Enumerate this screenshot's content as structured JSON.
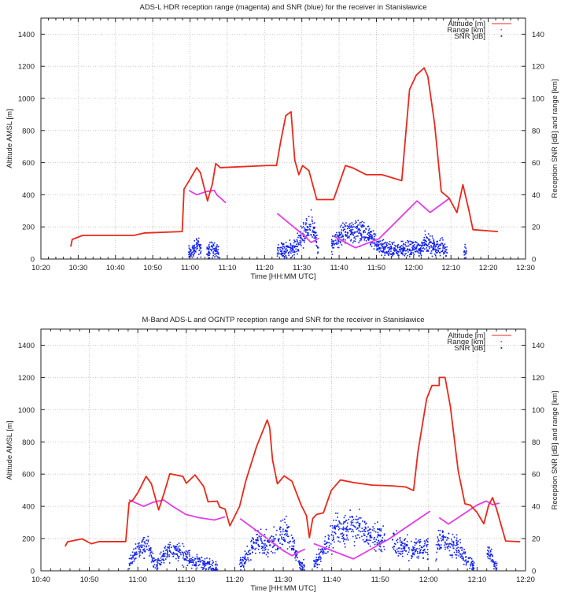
{
  "chart_data": [
    {
      "type": "line+scatter",
      "title": "ADS-L HDR reception range (magenta) and SNR (blue) for the receiver in Stanisławice",
      "xlabel": "Time [HH:MM UTC]",
      "ylabel": "Altitude AMSL [m]",
      "y2label": "Reception SNR [dB] and range [km]",
      "x_unit": "minutes since 00:00 UTC",
      "xlim": [
        620,
        750
      ],
      "x_ticks": [
        "10:20",
        "10:30",
        "10:40",
        "10:50",
        "11:00",
        "11:10",
        "11:20",
        "11:30",
        "11:40",
        "11:50",
        "12:00",
        "12:10",
        "12:20",
        "12:30"
      ],
      "ylim": [
        0,
        1500
      ],
      "y_ticks": [
        "0",
        "200",
        "400",
        "600",
        "800",
        "1000",
        "1200",
        "1400"
      ],
      "y2lim": [
        0,
        150
      ],
      "y2_ticks": [
        "0",
        "20",
        "40",
        "60",
        "80",
        "100",
        "120",
        "140"
      ],
      "grid": true,
      "legend_position": "top-right",
      "legend": [
        "Altitude [m]",
        "Range [km]",
        "SNR [dB]"
      ],
      "colors": {
        "altitude": "#e8291c",
        "range": "#e23ce6",
        "snr": "#1020ee"
      },
      "series": {
        "altitude": [
          [
            [
              628,
              77
            ],
            [
              628.4,
              122
            ],
            [
              631.2,
              147
            ],
            [
              644.9,
              147
            ],
            [
              647.7,
              162
            ],
            [
              657.9,
              171
            ],
            [
              658.4,
              436
            ],
            [
              659.7,
              485
            ],
            [
              661.8,
              569
            ],
            [
              662.8,
              537
            ],
            [
              664.7,
              362
            ],
            [
              666,
              468
            ],
            [
              666.9,
              595
            ],
            [
              668.1,
              569
            ],
            [
              680.8,
              582
            ],
            [
              683.2,
              582
            ],
            [
              684.3,
              729
            ],
            [
              685.7,
              893
            ],
            [
              687.1,
              917
            ],
            [
              688.1,
              615
            ],
            [
              689.2,
              525
            ],
            [
              690.2,
              582
            ],
            [
              691.9,
              550
            ],
            [
              694,
              370
            ],
            [
              698.5,
              370
            ],
            [
              701.7,
              582
            ],
            [
              703.8,
              566
            ],
            [
              707.3,
              525
            ],
            [
              711.5,
              525
            ],
            [
              716.8,
              488
            ],
            [
              718.9,
              1056
            ],
            [
              720.7,
              1145
            ],
            [
              722.8,
              1190
            ],
            [
              723.8,
              1137
            ],
            [
              725.6,
              844
            ],
            [
              727.4,
              420
            ],
            [
              729.5,
              379
            ],
            [
              731.6,
              289
            ],
            [
              733.2,
              463
            ],
            [
              734.8,
              305
            ],
            [
              735.9,
              183
            ],
            [
              742.6,
              171
            ]
          ]
        ],
        "range": [
          [
            [
              659.7,
              42.7
            ],
            [
              661.8,
              40
            ],
            [
              664.3,
              42
            ],
            [
              666.5,
              42.7
            ],
            [
              667.2,
              40
            ],
            [
              669.6,
              35
            ]
          ],
          [
            [
              683.4,
              28.4
            ],
            [
              690.4,
              15
            ],
            [
              692.5,
              10.3
            ],
            [
              694.6,
              13
            ]
          ],
          [
            [
              698.8,
              13.9
            ],
            [
              704.4,
              7
            ],
            [
              710.7,
              12.6
            ],
            [
              720.9,
              36.2
            ],
            [
              724.4,
              29
            ],
            [
              729.7,
              38
            ]
          ]
        ],
        "snr": [
          [
            [
              659.5,
              4
            ],
            [
              660.5,
              4
            ],
            [
              661.5,
              7
            ],
            [
              662.2,
              9
            ],
            [
              663,
              5
            ]
          ],
          [
            [
              664.5,
              5
            ],
            [
              666,
              6
            ],
            [
              667.7,
              5
            ]
          ],
          [
            [
              683.4,
              5
            ],
            [
              686,
              6
            ],
            [
              688.5,
              7
            ],
            [
              689.7,
              14
            ],
            [
              691,
              17
            ],
            [
              692.5,
              21
            ],
            [
              693.5,
              15
            ],
            [
              694.5,
              7
            ]
          ],
          [
            [
              698,
              8
            ],
            [
              700,
              14
            ],
            [
              702,
              17
            ],
            [
              704,
              18
            ],
            [
              706,
              16
            ],
            [
              708,
              14
            ],
            [
              709.5,
              10
            ],
            [
              710.5,
              8
            ],
            [
              712,
              6
            ],
            [
              716,
              6
            ],
            [
              720,
              7
            ],
            [
              722,
              6
            ],
            [
              723,
              12
            ],
            [
              725,
              8
            ],
            [
              728,
              7
            ],
            [
              729,
              4
            ]
          ],
          [
            [
              733.5,
              5
            ],
            [
              734.2,
              5
            ]
          ]
        ]
      }
    },
    {
      "type": "line+scatter",
      "title": "M-Band ADS-L and OGNTP reception range and SNR for the receiver in Stanisławice",
      "xlabel": "Time [HH:MM UTC]",
      "ylabel": "Altitude AMSL [m]",
      "y2label": "Reception SNR [dB] and range [km]",
      "x_unit": "minutes since 00:00 UTC",
      "xlim": [
        640,
        740
      ],
      "x_ticks": [
        "10:40",
        "10:50",
        "11:00",
        "11:10",
        "11:20",
        "11:30",
        "11:40",
        "11:50",
        "12:00",
        "12:10",
        "12:20"
      ],
      "ylim": [
        0,
        1500
      ],
      "y_ticks": [
        "0",
        "200",
        "400",
        "600",
        "800",
        "1000",
        "1200",
        "1400"
      ],
      "y2lim": [
        0,
        150
      ],
      "y2_ticks": [
        "0",
        "20",
        "40",
        "60",
        "80",
        "100",
        "120",
        "140"
      ],
      "grid": true,
      "legend_position": "top-right",
      "legend": [
        "Altitude [m]",
        "Range [km]",
        "SNR [dB]"
      ],
      "colors": {
        "altitude": "#e8291c",
        "range": "#e23ce6",
        "snr": "#1020ee"
      },
      "series": {
        "altitude": [
          [
            [
              645,
              152
            ],
            [
              645.5,
              180
            ],
            [
              648.5,
              198
            ],
            [
              650.4,
              168
            ],
            [
              652,
              181
            ],
            [
              657.5,
              181
            ],
            [
              658.2,
              424
            ],
            [
              659,
              440
            ],
            [
              660.1,
              490
            ],
            [
              661.7,
              586
            ],
            [
              662.8,
              540
            ],
            [
              664.3,
              378
            ],
            [
              665.5,
              490
            ],
            [
              666.6,
              602
            ],
            [
              669.3,
              586
            ],
            [
              670,
              543
            ],
            [
              671.8,
              595
            ],
            [
              673.6,
              523
            ],
            [
              674.5,
              428
            ],
            [
              676.4,
              432
            ],
            [
              676.9,
              395
            ],
            [
              678,
              383
            ],
            [
              679,
              279
            ],
            [
              681,
              400
            ],
            [
              682.3,
              560
            ],
            [
              684.5,
              771
            ],
            [
              686.7,
              936
            ],
            [
              687.2,
              890
            ],
            [
              687.8,
              688
            ],
            [
              688.8,
              540
            ],
            [
              690.2,
              589
            ],
            [
              691.8,
              556
            ],
            [
              693.7,
              408
            ],
            [
              694.8,
              342
            ],
            [
              695.4,
              206
            ],
            [
              696.1,
              325
            ],
            [
              696.9,
              350
            ],
            [
              698.3,
              360
            ],
            [
              699.9,
              498
            ],
            [
              701.8,
              564
            ],
            [
              704.5,
              548
            ],
            [
              708.3,
              532
            ],
            [
              712.6,
              527
            ],
            [
              715.3,
              520
            ],
            [
              716.9,
              498
            ],
            [
              717.8,
              738
            ],
            [
              719.6,
              1068
            ],
            [
              720.7,
              1150
            ],
            [
              722.2,
              1150
            ],
            [
              722.2,
              1200
            ],
            [
              723.4,
              1200
            ],
            [
              724.5,
              1018
            ],
            [
              726.1,
              622
            ],
            [
              727.5,
              416
            ],
            [
              728.6,
              408
            ],
            [
              729.9,
              366
            ],
            [
              731.4,
              292
            ],
            [
              732.4,
              408
            ],
            [
              733.2,
              454
            ],
            [
              734,
              386
            ],
            [
              735.9,
              185
            ],
            [
              738.9,
              180
            ]
          ]
        ],
        "range": [
          [
            [
              658.2,
              44
            ],
            [
              661.2,
              40
            ],
            [
              663.1,
              42.5
            ],
            [
              665.3,
              44
            ],
            [
              667.2,
              40
            ],
            [
              669.9,
              35
            ],
            [
              672.6,
              33
            ],
            [
              675.8,
              31.5
            ],
            [
              678,
              33.5
            ]
          ],
          [
            [
              681.1,
              32.4
            ],
            [
              684,
              26
            ],
            [
              689.9,
              12.8
            ],
            [
              691.8,
              9.4
            ],
            [
              694.5,
              13.5
            ]
          ],
          [
            [
              696.3,
              16.9
            ],
            [
              704.5,
              7.4
            ],
            [
              711.6,
              19.3
            ],
            [
              720.3,
              37
            ]
          ],
          [
            [
              722.2,
              33
            ],
            [
              724.1,
              29
            ],
            [
              730,
              40.8
            ],
            [
              731.9,
              43.3
            ],
            [
              733.2,
              41
            ],
            [
              734.6,
              42
            ]
          ]
        ],
        "snr": [
          [
            [
              658.2,
              4
            ],
            [
              659.5,
              12
            ],
            [
              661,
              14
            ],
            [
              662,
              17
            ],
            [
              663,
              8
            ],
            [
              664,
              3
            ],
            [
              665,
              8
            ],
            [
              666,
              13
            ],
            [
              668,
              12
            ],
            [
              670,
              9
            ],
            [
              672,
              6
            ],
            [
              674,
              4
            ],
            [
              675.5,
              2
            ],
            [
              676.5,
              1
            ]
          ],
          [
            [
              681,
              5
            ],
            [
              682,
              7
            ],
            [
              683,
              10
            ],
            [
              684,
              18
            ],
            [
              686,
              18
            ],
            [
              688,
              17
            ],
            [
              689.6,
              23
            ],
            [
              690.6,
              27
            ],
            [
              691.5,
              19
            ],
            [
              692.5,
              12
            ],
            [
              693.5,
              4
            ],
            [
              694.5,
              2
            ]
          ],
          [
            [
              696.3,
              4
            ],
            [
              698,
              10
            ],
            [
              699.5,
              19
            ],
            [
              701,
              27
            ],
            [
              702.5,
              23
            ],
            [
              704,
              29
            ],
            [
              706,
              25
            ],
            [
              708,
              23
            ],
            [
              710,
              21
            ],
            [
              711,
              17
            ]
          ],
          [
            [
              712.5,
              19
            ],
            [
              715,
              14
            ],
            [
              717,
              13
            ],
            [
              719,
              14
            ],
            [
              720,
              16
            ]
          ],
          [
            [
              721.5,
              10
            ],
            [
              722,
              19
            ],
            [
              724,
              18
            ],
            [
              726,
              14
            ],
            [
              728,
              7
            ],
            [
              729.5,
              2
            ]
          ],
          [
            [
              732,
              8
            ],
            [
              732.5,
              13
            ],
            [
              733.5,
              5
            ],
            [
              734.2,
              2
            ]
          ]
        ]
      }
    }
  ]
}
